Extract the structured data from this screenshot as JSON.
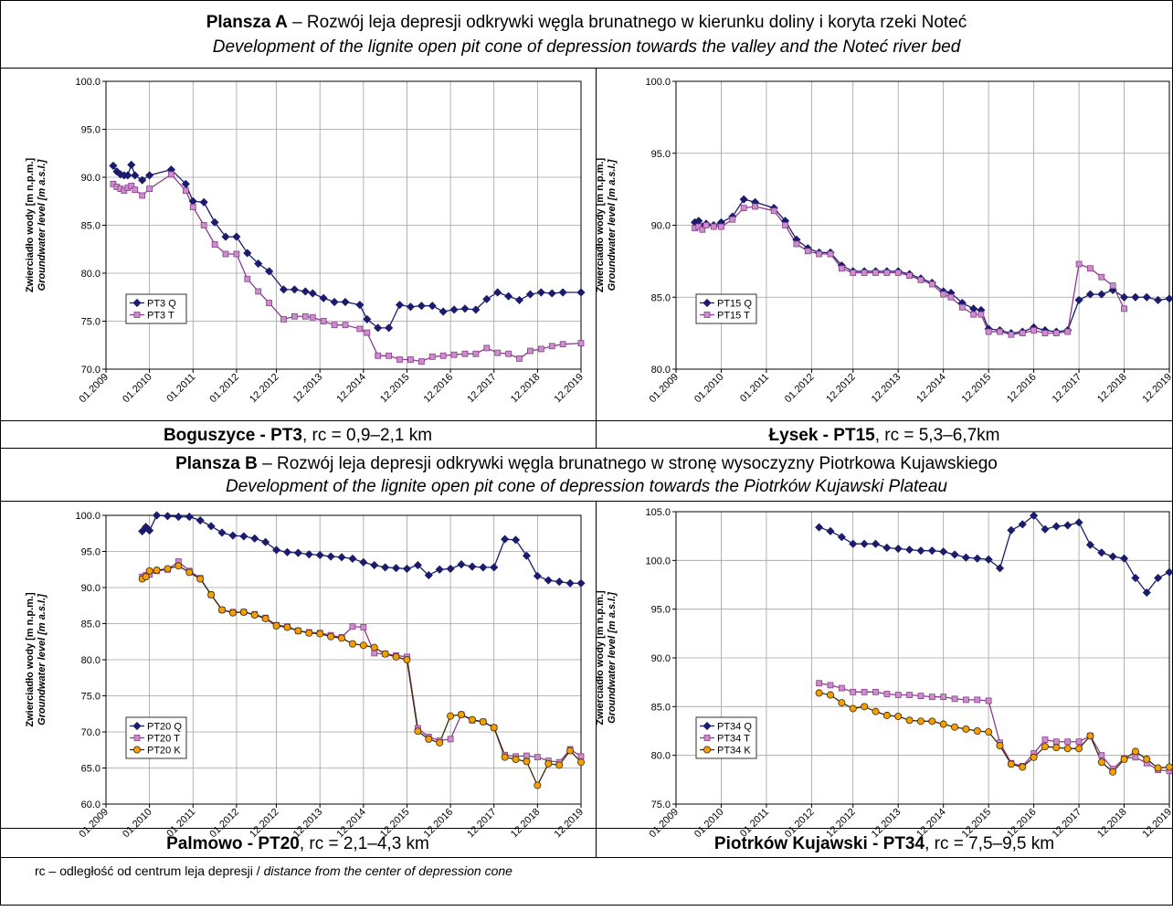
{
  "plates": [
    {
      "label": "Plansza A",
      "title": " – Rozwój leja depresji odkrywki węgla brunatnego w kierunku doliny i koryta rzeki Noteć",
      "title_en": "Development of the lignite open pit cone of depression towards the valley and the Noteć river bed"
    },
    {
      "label": "Plansza B",
      "title": " – Rozwój leja depresji odkrywki węgla brunatnego w stronę wysoczyzny Piotrkowa Kujawskiego",
      "title_en": "Development of the lignite open pit cone of depression towards the Piotrków Kujawski Plateau"
    }
  ],
  "footnote": {
    "text": "rc – odległość od centrum leja depresji / ",
    "text_en": "distance from the center of depression cone"
  },
  "chart_data": [
    {
      "type": "line",
      "station": "Boguszyce - PT3",
      "range_text": ", rc = 0,9–2,1 km",
      "ylabel": "Zwierciadło wody [m n.p.m.]",
      "ylabel_en": "Groundwater level [m a.s.l.]",
      "xlim": [
        "01.2009",
        "12.2019"
      ],
      "xticks": [
        "01.2009",
        "01.2010",
        "01.2011",
        "01.2012",
        "12.2012",
        "12.2013",
        "12.2014",
        "12.2015",
        "12.2016",
        "12.2017",
        "12.2018",
        "12.2019"
      ],
      "ylim": [
        70,
        100
      ],
      "yticks": [
        {
          "value": 70,
          "label": "70.0"
        },
        {
          "value": 75,
          "label": "75.0"
        },
        {
          "value": 80,
          "label": "80.0"
        },
        {
          "value": 85,
          "label": "85.0"
        },
        {
          "value": 90,
          "label": "90.0"
        },
        {
          "value": 95,
          "label": "95.0"
        },
        {
          "value": 100,
          "label": "100.0"
        }
      ],
      "grid": true,
      "legend": "lower left",
      "x": [
        "03.2009",
        "04.2009",
        "05.2009",
        "06.2009",
        "07.2009",
        "08.2009",
        "09.2009",
        "11.2009",
        "01.2010",
        "07.2010",
        "11.2010",
        "01.2011",
        "04.2011",
        "07.2011",
        "10.2011",
        "01.2012",
        "04.2012",
        "07.2012",
        "10.2012",
        "02.2013",
        "05.2013",
        "08.2013",
        "10.2013",
        "01.2014",
        "04.2014",
        "07.2014",
        "11.2014",
        "01.2015",
        "04.2015",
        "07.2015",
        "10.2015",
        "01.2016",
        "04.2016",
        "07.2016",
        "10.2016",
        "01.2017",
        "04.2017",
        "07.2017",
        "10.2017",
        "01.2018",
        "04.2018",
        "07.2018",
        "10.2018",
        "01.2019",
        "04.2019",
        "07.2019",
        "12.2019"
      ],
      "series": [
        {
          "name": "PT3 Q",
          "color": "#1c1c6e",
          "marker": "diamond",
          "marker_fill": "#1c1c6e",
          "values": [
            91.2,
            90.6,
            90.3,
            90.2,
            90.2,
            91.3,
            90.2,
            89.7,
            90.2,
            90.8,
            89.3,
            87.5,
            87.4,
            85.3,
            83.8,
            83.8,
            82.1,
            81.0,
            80.2,
            78.3,
            78.3,
            78.1,
            77.9,
            77.4,
            77.0,
            77.0,
            76.7,
            75.2,
            74.3,
            74.3,
            76.7,
            76.5,
            76.6,
            76.6,
            76.0,
            76.2,
            76.3,
            76.2,
            77.3,
            78.0,
            77.6,
            77.2,
            77.8,
            78.0,
            77.9,
            78.0,
            78.0
          ]
        },
        {
          "name": "PT3 T",
          "color": "#8e3a8e",
          "marker": "square",
          "marker_fill": "#c98fc9",
          "values": [
            89.3,
            89.0,
            88.8,
            88.6,
            88.9,
            89.1,
            88.7,
            88.1,
            88.8,
            90.3,
            88.6,
            86.9,
            85.0,
            83.0,
            82.0,
            82.0,
            79.4,
            78.1,
            76.9,
            75.2,
            75.5,
            75.5,
            75.4,
            75.0,
            74.6,
            74.6,
            74.2,
            73.8,
            71.4,
            71.4,
            71.0,
            71.0,
            70.8,
            71.3,
            71.4,
            71.5,
            71.6,
            71.6,
            72.2,
            71.7,
            71.6,
            71.1,
            71.9,
            72.1,
            72.4,
            72.6,
            72.7
          ]
        }
      ]
    },
    {
      "type": "line",
      "station": "Łysek - PT15",
      "range_text": ", rc = 5,3–6,7km",
      "ylabel": "Zwierciadło wody [m n.p.m.]",
      "ylabel_en": "Groundwater level [m a.s.l.]",
      "xlim": [
        "01.2009",
        "12.2019"
      ],
      "xticks": [
        "01.2009",
        "01.2010",
        "01.2011",
        "01.2012",
        "12.2012",
        "12.2013",
        "12.2014",
        "12.2015",
        "12.2016",
        "12.2017",
        "12.2018",
        "12.2019"
      ],
      "ylim": [
        80,
        100
      ],
      "yticks": [
        {
          "value": 80,
          "label": "80.0"
        },
        {
          "value": 85,
          "label": "85.0"
        },
        {
          "value": 90,
          "label": "90.0"
        },
        {
          "value": 95,
          "label": "95.0"
        },
        {
          "value": 100,
          "label": "100.0"
        }
      ],
      "grid": true,
      "legend": "lower left",
      "x": [
        "06.2009",
        "07.2009",
        "08.2009",
        "09.2009",
        "11.2009",
        "01.2010",
        "04.2010",
        "07.2010",
        "10.2010",
        "03.2011",
        "06.2011",
        "09.2011",
        "12.2011",
        "03.2012",
        "06.2012",
        "09.2012",
        "12.2012",
        "03.2013",
        "06.2013",
        "09.2013",
        "12.2013",
        "03.2014",
        "06.2014",
        "09.2014",
        "12.2014",
        "02.2015",
        "05.2015",
        "08.2015",
        "10.2015",
        "12.2015",
        "03.2016",
        "06.2016",
        "09.2016",
        "12.2016",
        "03.2017",
        "06.2017",
        "09.2017",
        "12.2017",
        "03.2018",
        "06.2018",
        "09.2018",
        "12.2018",
        "03.2019",
        "06.2019",
        "09.2019",
        "12.2019"
      ],
      "series": [
        {
          "name": "PT15 Q",
          "color": "#1c1c6e",
          "marker": "diamond",
          "marker_fill": "#1c1c6e",
          "values": [
            90.2,
            90.3,
            89.9,
            90.1,
            90.0,
            90.2,
            90.6,
            91.8,
            91.6,
            91.2,
            90.3,
            89.0,
            88.4,
            88.1,
            88.1,
            87.2,
            86.8,
            86.8,
            86.8,
            86.8,
            86.8,
            86.6,
            86.3,
            86.0,
            85.4,
            85.3,
            84.6,
            84.2,
            84.1,
            82.8,
            82.7,
            82.5,
            82.6,
            82.9,
            82.7,
            82.6,
            82.7,
            84.8,
            85.2,
            85.2,
            85.5,
            85.0,
            85.0,
            85.0,
            84.8,
            84.9
          ]
        },
        {
          "name": "PT15 T",
          "color": "#8e3a8e",
          "marker": "square",
          "marker_fill": "#c98fc9",
          "values": [
            89.8,
            89.9,
            89.7,
            90.0,
            89.9,
            89.9,
            90.4,
            91.2,
            91.3,
            91.0,
            90.0,
            88.7,
            88.2,
            88.0,
            88.0,
            87.0,
            86.7,
            86.7,
            86.7,
            86.7,
            86.7,
            86.5,
            86.2,
            85.9,
            85.2,
            85.0,
            84.3,
            83.8,
            83.8,
            82.6,
            82.6,
            82.4,
            82.5,
            82.7,
            82.5,
            82.5,
            82.6,
            87.3,
            87.0,
            86.4,
            85.8,
            84.2,
            null,
            null,
            null,
            null
          ]
        }
      ]
    },
    {
      "type": "line",
      "station": "Palmowo - PT20",
      "range_text": ", rc = 2,1–4,3 km",
      "ylabel": "Zwierciadło wody [m n.p.m.]",
      "ylabel_en": "Groundwater level [m a.s.l.]",
      "xlim": [
        "01.2009",
        "12.2019"
      ],
      "xticks": [
        "01.2009",
        "01.2010",
        "01.2011",
        "01.2012",
        "12.2012",
        "12.2013",
        "12.2014",
        "12.2015",
        "12.2016",
        "12.2017",
        "12.2018",
        "12.2019"
      ],
      "ylim": [
        60,
        100
      ],
      "yticks": [
        {
          "value": 60,
          "label": "60.0"
        },
        {
          "value": 65,
          "label": "65.0"
        },
        {
          "value": 70,
          "label": "70.0"
        },
        {
          "value": 75,
          "label": "75.0"
        },
        {
          "value": 80,
          "label": "80.0"
        },
        {
          "value": 85,
          "label": "85.0"
        },
        {
          "value": 90,
          "label": "90.0"
        },
        {
          "value": 95,
          "label": "95.0"
        },
        {
          "value": 100,
          "label": "100.0"
        }
      ],
      "grid": true,
      "legend": "lower left",
      "x": [
        "11.2009",
        "12.2009",
        "01.2010",
        "03.2010",
        "06.2010",
        "09.2010",
        "12.2010",
        "03.2011",
        "06.2011",
        "09.2011",
        "12.2011",
        "03.2012",
        "06.2012",
        "09.2012",
        "12.2012",
        "03.2013",
        "06.2013",
        "09.2013",
        "12.2013",
        "03.2014",
        "06.2014",
        "09.2014",
        "12.2014",
        "03.2015",
        "06.2015",
        "09.2015",
        "12.2015",
        "03.2016",
        "06.2016",
        "09.2016",
        "12.2016",
        "03.2017",
        "06.2017",
        "09.2017",
        "12.2017",
        "03.2018",
        "06.2018",
        "09.2018",
        "12.2018",
        "03.2019",
        "06.2019",
        "09.2019",
        "12.2019"
      ],
      "series": [
        {
          "name": "PT20 Q",
          "color": "#1c1c6e",
          "marker": "diamond",
          "marker_fill": "#1c1c6e",
          "values": [
            97.8,
            98.4,
            97.9,
            100.0,
            99.9,
            99.8,
            99.8,
            99.3,
            98.5,
            97.6,
            97.2,
            97.1,
            96.8,
            96.3,
            95.2,
            94.9,
            94.8,
            94.6,
            94.5,
            94.3,
            94.2,
            94.0,
            93.5,
            93.1,
            92.8,
            92.7,
            92.6,
            93.1,
            91.7,
            92.5,
            92.6,
            93.2,
            92.9,
            92.8,
            92.8,
            96.7,
            96.6,
            94.4,
            91.6,
            91.0,
            90.8,
            90.6,
            90.6
          ]
        },
        {
          "name": "PT20 T",
          "color": "#8e3a8e",
          "marker": "square",
          "marker_fill": "#c98fc9",
          "values": [
            91.5,
            91.7,
            91.8,
            92.3,
            92.5,
            93.6,
            92.3,
            91.3,
            89.0,
            86.9,
            86.6,
            86.6,
            86.3,
            85.8,
            84.8,
            84.6,
            84.0,
            83.8,
            83.7,
            83.4,
            83.1,
            84.6,
            84.5,
            80.9,
            80.8,
            80.6,
            80.4,
            70.5,
            69.3,
            68.8,
            69.0,
            72.4,
            71.6,
            71.4,
            70.6,
            66.8,
            66.6,
            66.7,
            66.5,
            66.0,
            65.8,
            67.6,
            66.6
          ]
        },
        {
          "name": "PT20 K",
          "color": "#3a2a08",
          "marker": "circle",
          "marker_fill": "#f5a000",
          "values": [
            91.2,
            91.5,
            92.3,
            92.4,
            92.6,
            93.0,
            92.1,
            91.2,
            89.0,
            86.9,
            86.5,
            86.6,
            86.2,
            85.7,
            84.7,
            84.5,
            84.0,
            83.7,
            83.6,
            83.2,
            83.0,
            82.2,
            82.0,
            81.7,
            80.8,
            80.4,
            80.0,
            70.1,
            69.0,
            68.5,
            72.2,
            72.4,
            71.7,
            71.4,
            70.6,
            66.5,
            66.2,
            65.9,
            62.6,
            65.6,
            65.4,
            67.4,
            65.8
          ]
        }
      ]
    },
    {
      "type": "line",
      "station": "Piotrków Kujawski - PT34",
      "range_text": ", rc = 7,5–9,5 km",
      "ylabel": "Zwierciadło wody [m n.p.m.]",
      "ylabel_en": "Groundwater level [m a.s.l.]",
      "xlim": [
        "01.2009",
        "12.2019"
      ],
      "xticks": [
        "01.2009",
        "01.2010",
        "01.2011",
        "01.2012",
        "12.2012",
        "12.2013",
        "12.2014",
        "12.2015",
        "12.2016",
        "12.2017",
        "12.2018",
        "12.2019"
      ],
      "ylim": [
        75,
        105
      ],
      "yticks": [
        {
          "value": 75,
          "label": "75.0"
        },
        {
          "value": 80,
          "label": "80.0"
        },
        {
          "value": 85,
          "label": "85.0"
        },
        {
          "value": 90,
          "label": "90.0"
        },
        {
          "value": 95,
          "label": "95.0"
        },
        {
          "value": 100,
          "label": "100.0"
        },
        {
          "value": 105,
          "label": "105.0"
        }
      ],
      "grid": true,
      "legend": "lower left",
      "x": [
        "03.2012",
        "06.2012",
        "09.2012",
        "12.2012",
        "03.2013",
        "06.2013",
        "09.2013",
        "12.2013",
        "03.2014",
        "06.2014",
        "09.2014",
        "12.2014",
        "03.2015",
        "06.2015",
        "09.2015",
        "12.2015",
        "03.2016",
        "06.2016",
        "09.2016",
        "12.2016",
        "03.2017",
        "06.2017",
        "09.2017",
        "12.2017",
        "03.2018",
        "06.2018",
        "09.2018",
        "12.2018",
        "03.2019",
        "06.2019",
        "09.2019",
        "12.2019"
      ],
      "series": [
        {
          "name": "PT34 Q",
          "color": "#1c1c6e",
          "marker": "diamond",
          "marker_fill": "#1c1c6e",
          "values": [
            103.4,
            103.0,
            102.4,
            101.7,
            101.7,
            101.7,
            101.3,
            101.2,
            101.1,
            101.0,
            101.0,
            100.9,
            100.6,
            100.3,
            100.2,
            100.1,
            99.2,
            103.1,
            103.7,
            104.6,
            103.2,
            103.5,
            103.6,
            103.9,
            101.6,
            100.8,
            100.4,
            100.2,
            98.2,
            96.7,
            98.2,
            98.8
          ]
        },
        {
          "name": "PT34 T",
          "color": "#8e3a8e",
          "marker": "square",
          "marker_fill": "#c98fc9",
          "values": [
            87.4,
            87.2,
            86.9,
            86.5,
            86.5,
            86.5,
            86.3,
            86.2,
            86.2,
            86.1,
            86.0,
            86.0,
            85.8,
            85.7,
            85.7,
            85.6,
            81.3,
            79.2,
            78.9,
            80.2,
            81.6,
            81.4,
            81.4,
            81.4,
            82.0,
            80.0,
            78.6,
            79.7,
            79.8,
            79.2,
            78.5,
            78.4
          ]
        },
        {
          "name": "PT34 K",
          "color": "#3a2a08",
          "marker": "circle",
          "marker_fill": "#f5a000",
          "values": [
            86.4,
            86.2,
            85.4,
            84.8,
            85.0,
            84.5,
            84.1,
            84.0,
            83.6,
            83.5,
            83.5,
            83.2,
            82.9,
            82.7,
            82.5,
            82.4,
            81.0,
            79.1,
            78.8,
            79.8,
            80.9,
            80.8,
            80.7,
            80.7,
            82.0,
            79.3,
            78.3,
            79.6,
            80.4,
            79.6,
            78.7,
            78.8
          ]
        }
      ]
    }
  ]
}
